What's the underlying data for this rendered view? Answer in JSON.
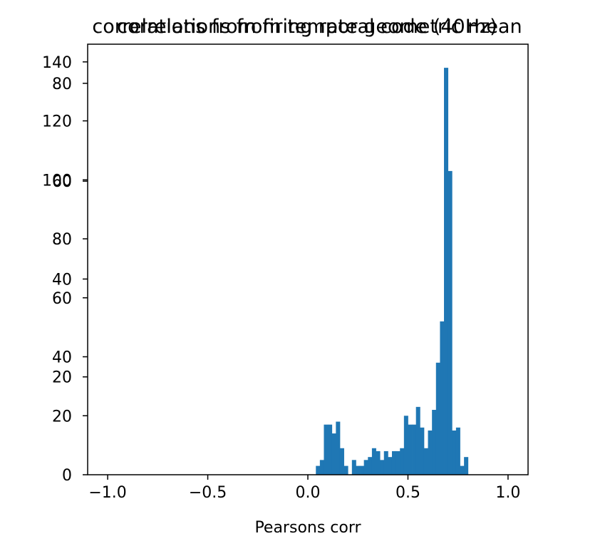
{
  "chart_data": {
    "type": "bar",
    "titles": [
      "correlations from temporal code (40Hz)",
      "correlations from firing rate geometric mean"
    ],
    "xlabel": "Pearsons corr",
    "ylabel": "",
    "xlim": [
      -1.1,
      1.1
    ],
    "grid": false,
    "legend": "none",
    "bar_color": "#1f77b4",
    "x_ticks": [
      {
        "value": -1.0,
        "label": "−1.0"
      },
      {
        "value": -0.5,
        "label": "−0.5"
      },
      {
        "value": 0.0,
        "label": "0.0"
      },
      {
        "value": 0.5,
        "label": "0.5"
      },
      {
        "value": 1.0,
        "label": "1.0"
      }
    ],
    "y_axes": [
      {
        "name": "",
        "ylim": [
          0,
          146
        ],
        "ticks": [
          0,
          20,
          40,
          60,
          80,
          100,
          120,
          140
        ]
      },
      {
        "name": "",
        "ylim": [
          0,
          88
        ],
        "ticks": [
          20,
          40,
          60,
          80
        ]
      }
    ],
    "bin_width": 0.02,
    "series": [
      {
        "name": "",
        "axis": 0,
        "bins": [
          {
            "x": 0.04,
            "y": 3
          },
          {
            "x": 0.06,
            "y": 5
          },
          {
            "x": 0.08,
            "y": 17
          },
          {
            "x": 0.1,
            "y": 17
          },
          {
            "x": 0.12,
            "y": 14
          },
          {
            "x": 0.14,
            "y": 18
          },
          {
            "x": 0.16,
            "y": 9
          },
          {
            "x": 0.18,
            "y": 3
          },
          {
            "x": 0.22,
            "y": 5
          },
          {
            "x": 0.24,
            "y": 3
          },
          {
            "x": 0.26,
            "y": 3
          },
          {
            "x": 0.28,
            "y": 5
          },
          {
            "x": 0.3,
            "y": 6
          },
          {
            "x": 0.32,
            "y": 9
          },
          {
            "x": 0.34,
            "y": 8
          },
          {
            "x": 0.36,
            "y": 5
          },
          {
            "x": 0.38,
            "y": 8
          },
          {
            "x": 0.4,
            "y": 6
          },
          {
            "x": 0.42,
            "y": 8
          },
          {
            "x": 0.44,
            "y": 8
          },
          {
            "x": 0.46,
            "y": 9
          },
          {
            "x": 0.48,
            "y": 20
          },
          {
            "x": 0.5,
            "y": 17
          },
          {
            "x": 0.52,
            "y": 17
          },
          {
            "x": 0.54,
            "y": 23
          },
          {
            "x": 0.56,
            "y": 16
          },
          {
            "x": 0.58,
            "y": 9
          },
          {
            "x": 0.6,
            "y": 15
          },
          {
            "x": 0.62,
            "y": 22
          },
          {
            "x": 0.64,
            "y": 38
          },
          {
            "x": 0.66,
            "y": 52
          },
          {
            "x": 0.68,
            "y": 138
          },
          {
            "x": 0.7,
            "y": 103
          },
          {
            "x": 0.72,
            "y": 15
          },
          {
            "x": 0.74,
            "y": 16
          },
          {
            "x": 0.76,
            "y": 3
          },
          {
            "x": 0.78,
            "y": 6
          }
        ]
      }
    ]
  }
}
